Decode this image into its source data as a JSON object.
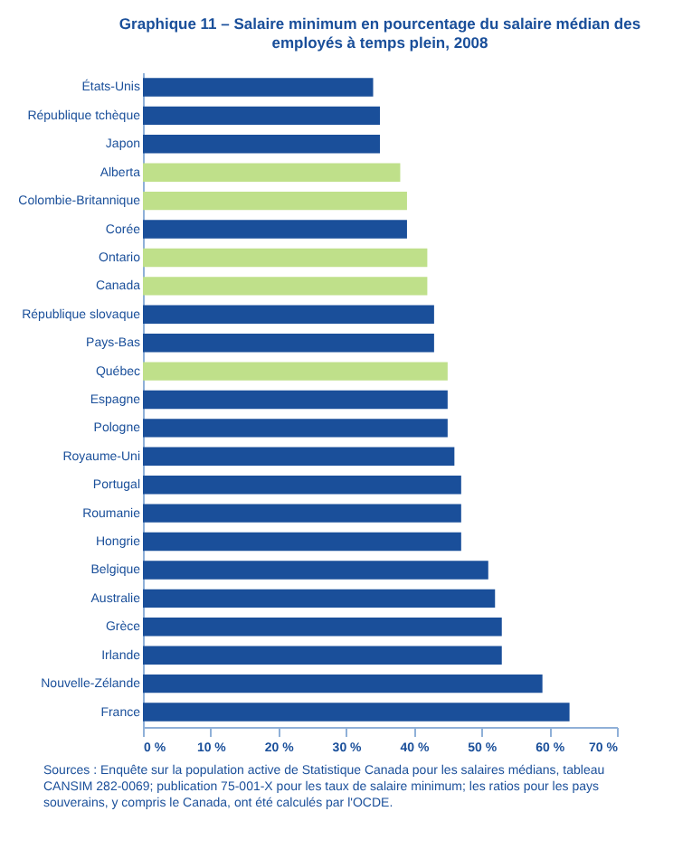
{
  "chart_data": {
    "type": "bar",
    "orientation": "horizontal",
    "title": [
      "Graphique 11 – Salaire minimum en pourcentage du salaire médian des",
      "employés à temps plein, 2008"
    ],
    "categories": [
      "États-Unis",
      "République tchèque",
      "Japon",
      "Alberta",
      "Colombie-Britannique",
      "Corée",
      "Ontario",
      "Canada",
      "République slovaque",
      "Pays-Bas",
      "Québec",
      "Espagne",
      "Pologne",
      "Royaume-Uni",
      "Portugal",
      "Roumanie",
      "Hongrie",
      "Belgique",
      "Australie",
      "Grèce",
      "Irlande",
      "Nouvelle-Zélande",
      "France"
    ],
    "values": [
      34,
      35,
      35,
      38,
      39,
      39,
      42,
      42,
      43,
      43,
      45,
      45,
      45,
      46,
      47,
      47,
      47,
      51,
      52,
      53,
      53,
      59,
      63
    ],
    "colors": [
      "#1a4f9a",
      "#1a4f9a",
      "#1a4f9a",
      "#bfe08a",
      "#bfe08a",
      "#1a4f9a",
      "#bfe08a",
      "#bfe08a",
      "#1a4f9a",
      "#1a4f9a",
      "#bfe08a",
      "#1a4f9a",
      "#1a4f9a",
      "#1a4f9a",
      "#1a4f9a",
      "#1a4f9a",
      "#1a4f9a",
      "#1a4f9a",
      "#1a4f9a",
      "#1a4f9a",
      "#1a4f9a",
      "#1a4f9a",
      "#1a4f9a"
    ],
    "xlim": [
      0,
      70
    ],
    "xticks": [
      {
        "value": 0,
        "label": "0 %"
      },
      {
        "value": 10,
        "label": "10 %"
      },
      {
        "value": 20,
        "label": "20 %"
      },
      {
        "value": 30,
        "label": "30 %"
      },
      {
        "value": 40,
        "label": "40 %"
      },
      {
        "value": 50,
        "label": "50 %"
      },
      {
        "value": 60,
        "label": "60 %"
      },
      {
        "value": 70,
        "label": "70 %"
      }
    ],
    "grid": false,
    "annotations": [
      "Sources : Enquête sur la population active de Statistique Canada pour les salaires médians, tableau CANSIM 282-0069; publication 75-001-X pour les taux de salaire minimum; les ratios pour les pays souverains, y compris le Canada, ont été calculés par l'OCDE."
    ]
  }
}
